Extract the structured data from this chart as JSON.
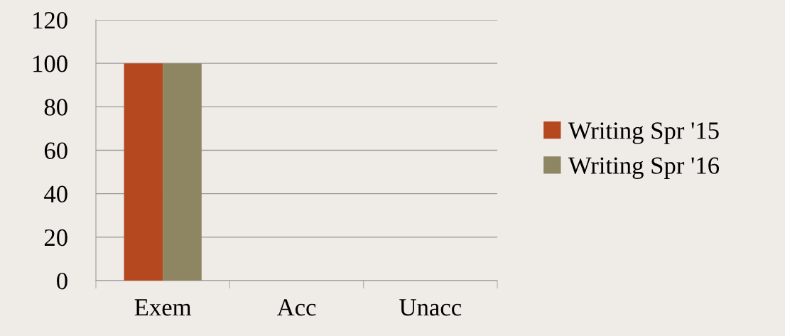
{
  "chart_data": {
    "type": "bar",
    "categories": [
      "Exem",
      "Acc",
      "Unacc"
    ],
    "series": [
      {
        "name": "Writing Spr '15",
        "color": "#b5481f",
        "values": [
          100,
          0,
          0
        ]
      },
      {
        "name": "Writing Spr '16",
        "color": "#8e8562",
        "values": [
          100,
          0,
          0
        ]
      }
    ],
    "ylim": [
      0,
      120
    ],
    "yticks": [
      0,
      20,
      40,
      60,
      80,
      100,
      120
    ],
    "grid": "y",
    "legend": "right"
  }
}
